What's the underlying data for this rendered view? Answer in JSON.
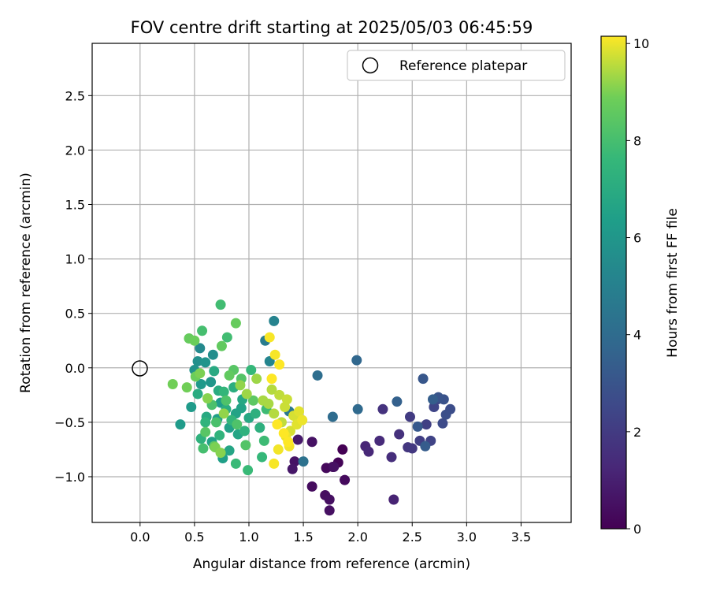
{
  "chart_data": {
    "type": "scatter",
    "title": "FOV centre drift starting at 2025/05/03 06:45:59",
    "xlabel": "Angular distance from reference (arcmin)",
    "ylabel": "Rotation from reference (arcmin)",
    "xlim": [
      -0.44,
      3.96
    ],
    "ylim": [
      -1.42,
      2.98
    ],
    "xticks": [
      0.0,
      0.5,
      1.0,
      1.5,
      2.0,
      2.5,
      3.0,
      3.5
    ],
    "yticks": [
      -1.0,
      -0.5,
      0.0,
      0.5,
      1.0,
      1.5,
      2.0,
      2.5
    ],
    "grid": true,
    "legend": {
      "position": "top-right",
      "entries": [
        "Reference platepar"
      ]
    },
    "reference_point": {
      "x": 0.0,
      "y": 0.0,
      "label": "Reference platepar"
    },
    "colorbar": {
      "label": "Hours from first FF file",
      "colormap": "viridis",
      "range": [
        0,
        10.15
      ],
      "ticks": [
        0,
        2,
        4,
        6,
        8,
        10
      ]
    },
    "points": [
      {
        "x": 1.86,
        "y": -0.75,
        "h": 0.0
      },
      {
        "x": 1.82,
        "y": -0.87,
        "h": 0.1
      },
      {
        "x": 1.77,
        "y": -0.91,
        "h": 0.2
      },
      {
        "x": 1.71,
        "y": -0.92,
        "h": 0.25
      },
      {
        "x": 1.88,
        "y": -1.03,
        "h": 0.3
      },
      {
        "x": 1.58,
        "y": -1.09,
        "h": 0.35
      },
      {
        "x": 1.7,
        "y": -1.17,
        "h": 0.4
      },
      {
        "x": 1.74,
        "y": -1.21,
        "h": 0.45
      },
      {
        "x": 1.74,
        "y": -1.31,
        "h": 0.5
      },
      {
        "x": 1.58,
        "y": -0.68,
        "h": 0.55
      },
      {
        "x": 1.42,
        "y": -0.86,
        "h": 0.6
      },
      {
        "x": 1.4,
        "y": -0.93,
        "h": 0.7
      },
      {
        "x": 1.78,
        "y": -0.91,
        "h": 0.5
      },
      {
        "x": 1.45,
        "y": -0.66,
        "h": 0.8
      },
      {
        "x": 2.33,
        "y": -1.21,
        "h": 1.1
      },
      {
        "x": 2.07,
        "y": -0.72,
        "h": 1.2
      },
      {
        "x": 2.1,
        "y": -0.77,
        "h": 1.3
      },
      {
        "x": 2.2,
        "y": -0.67,
        "h": 1.4
      },
      {
        "x": 2.31,
        "y": -0.82,
        "h": 1.5
      },
      {
        "x": 2.38,
        "y": -0.61,
        "h": 1.6
      },
      {
        "x": 2.23,
        "y": -0.38,
        "h": 1.7
      },
      {
        "x": 2.46,
        "y": -0.73,
        "h": 1.8
      },
      {
        "x": 2.5,
        "y": -0.74,
        "h": 1.9
      },
      {
        "x": 2.48,
        "y": -0.45,
        "h": 2.0
      },
      {
        "x": 2.57,
        "y": -0.67,
        "h": 2.1
      },
      {
        "x": 2.63,
        "y": -0.52,
        "h": 2.2
      },
      {
        "x": 2.67,
        "y": -0.67,
        "h": 2.3
      },
      {
        "x": 2.7,
        "y": -0.36,
        "h": 2.4
      },
      {
        "x": 2.73,
        "y": -0.29,
        "h": 2.5
      },
      {
        "x": 2.78,
        "y": -0.51,
        "h": 2.6
      },
      {
        "x": 2.85,
        "y": -0.38,
        "h": 2.7
      },
      {
        "x": 2.81,
        "y": -0.43,
        "h": 2.8
      },
      {
        "x": 2.79,
        "y": -0.29,
        "h": 2.9
      },
      {
        "x": 2.74,
        "y": -0.27,
        "h": 3.0
      },
      {
        "x": 2.6,
        "y": -0.1,
        "h": 3.1
      },
      {
        "x": 2.55,
        "y": -0.54,
        "h": 3.2
      },
      {
        "x": 2.62,
        "y": -0.72,
        "h": 3.3
      },
      {
        "x": 2.69,
        "y": -0.29,
        "h": 3.4
      },
      {
        "x": 2.36,
        "y": -0.31,
        "h": 3.5
      },
      {
        "x": 1.99,
        "y": 0.07,
        "h": 3.8
      },
      {
        "x": 2.0,
        "y": -0.38,
        "h": 3.9
      },
      {
        "x": 1.77,
        "y": -0.45,
        "h": 4.0
      },
      {
        "x": 1.63,
        "y": -0.07,
        "h": 4.1
      },
      {
        "x": 1.5,
        "y": -0.86,
        "h": 4.3
      },
      {
        "x": 1.37,
        "y": -0.4,
        "h": 4.6
      },
      {
        "x": 1.15,
        "y": 0.25,
        "h": 4.8
      },
      {
        "x": 1.23,
        "y": 0.43,
        "h": 5.1
      },
      {
        "x": 1.19,
        "y": 0.06,
        "h": 5.2
      },
      {
        "x": 0.55,
        "y": 0.18,
        "h": 5.4
      },
      {
        "x": 0.67,
        "y": 0.12,
        "h": 5.6
      },
      {
        "x": 0.53,
        "y": 0.06,
        "h": 5.7
      },
      {
        "x": 0.5,
        "y": -0.02,
        "h": 5.8
      },
      {
        "x": 0.6,
        "y": 0.05,
        "h": 5.9
      },
      {
        "x": 0.65,
        "y": -0.13,
        "h": 6.0
      },
      {
        "x": 0.56,
        "y": -0.15,
        "h": 6.1
      },
      {
        "x": 0.47,
        "y": -0.36,
        "h": 6.2
      },
      {
        "x": 0.37,
        "y": -0.52,
        "h": 6.2
      },
      {
        "x": 0.74,
        "y": -0.32,
        "h": 6.3
      },
      {
        "x": 0.71,
        "y": -0.47,
        "h": 6.4
      },
      {
        "x": 0.76,
        "y": -0.83,
        "h": 6.4
      },
      {
        "x": 0.66,
        "y": -0.68,
        "h": 6.5
      },
      {
        "x": 0.82,
        "y": -0.55,
        "h": 6.5
      },
      {
        "x": 0.88,
        "y": -0.42,
        "h": 6.6
      },
      {
        "x": 0.93,
        "y": -0.37,
        "h": 6.6
      },
      {
        "x": 0.82,
        "y": -0.76,
        "h": 6.7
      },
      {
        "x": 0.9,
        "y": -0.61,
        "h": 6.7
      },
      {
        "x": 0.94,
        "y": -0.29,
        "h": 6.8
      },
      {
        "x": 1.0,
        "y": -0.46,
        "h": 6.8
      },
      {
        "x": 0.68,
        "y": -0.03,
        "h": 6.9
      },
      {
        "x": 0.61,
        "y": -0.45,
        "h": 6.9
      },
      {
        "x": 0.53,
        "y": -0.24,
        "h": 7.0
      },
      {
        "x": 0.72,
        "y": -0.21,
        "h": 7.0
      },
      {
        "x": 0.79,
        "y": -0.38,
        "h": 7.1
      },
      {
        "x": 0.86,
        "y": -0.18,
        "h": 7.1
      },
      {
        "x": 1.06,
        "y": -0.42,
        "h": 7.2
      },
      {
        "x": 1.1,
        "y": -0.55,
        "h": 7.2
      },
      {
        "x": 0.96,
        "y": -0.58,
        "h": 7.3
      },
      {
        "x": 0.56,
        "y": -0.65,
        "h": 7.3
      },
      {
        "x": 0.6,
        "y": -0.5,
        "h": 7.4
      },
      {
        "x": 0.73,
        "y": -0.62,
        "h": 7.4
      },
      {
        "x": 0.84,
        "y": -0.48,
        "h": 7.5
      },
      {
        "x": 0.77,
        "y": -0.22,
        "h": 7.5
      },
      {
        "x": 1.02,
        "y": -0.02,
        "h": 7.6
      },
      {
        "x": 1.12,
        "y": -0.82,
        "h": 7.6
      },
      {
        "x": 0.88,
        "y": -0.88,
        "h": 7.7
      },
      {
        "x": 0.99,
        "y": -0.94,
        "h": 7.7
      },
      {
        "x": 1.16,
        "y": -0.38,
        "h": 7.8
      },
      {
        "x": 1.14,
        "y": -0.67,
        "h": 7.8
      },
      {
        "x": 0.8,
        "y": 0.28,
        "h": 7.9
      },
      {
        "x": 0.74,
        "y": 0.58,
        "h": 7.9
      },
      {
        "x": 0.57,
        "y": 0.34,
        "h": 8.0
      },
      {
        "x": 0.58,
        "y": -0.74,
        "h": 8.0
      },
      {
        "x": 0.66,
        "y": -0.34,
        "h": 8.1
      },
      {
        "x": 0.7,
        "y": -0.5,
        "h": 8.1
      },
      {
        "x": 0.79,
        "y": -0.3,
        "h": 8.2
      },
      {
        "x": 0.89,
        "y": -0.52,
        "h": 8.2
      },
      {
        "x": 0.97,
        "y": -0.71,
        "h": 8.3
      },
      {
        "x": 0.93,
        "y": -0.1,
        "h": 8.3
      },
      {
        "x": 0.6,
        "y": -0.59,
        "h": 8.4
      },
      {
        "x": 0.86,
        "y": -0.02,
        "h": 8.4
      },
      {
        "x": 1.04,
        "y": -0.3,
        "h": 8.5
      },
      {
        "x": 0.68,
        "y": -0.72,
        "h": 8.5
      },
      {
        "x": 0.75,
        "y": 0.2,
        "h": 8.6
      },
      {
        "x": 0.82,
        "y": -0.07,
        "h": 8.6
      },
      {
        "x": 0.88,
        "y": 0.41,
        "h": 8.7
      },
      {
        "x": 0.45,
        "y": 0.27,
        "h": 8.7
      },
      {
        "x": 0.5,
        "y": 0.25,
        "h": 8.8
      },
      {
        "x": 0.51,
        "y": -0.08,
        "h": 8.8
      },
      {
        "x": 0.43,
        "y": -0.18,
        "h": 8.9
      },
      {
        "x": 0.3,
        "y": -0.15,
        "h": 8.9
      },
      {
        "x": 0.55,
        "y": -0.05,
        "h": 9.0
      },
      {
        "x": 0.69,
        "y": -0.73,
        "h": 9.0
      },
      {
        "x": 0.74,
        "y": -0.78,
        "h": 9.1
      },
      {
        "x": 0.62,
        "y": -0.28,
        "h": 9.1
      },
      {
        "x": 0.77,
        "y": -0.42,
        "h": 9.2
      },
      {
        "x": 0.92,
        "y": -0.16,
        "h": 9.2
      },
      {
        "x": 0.98,
        "y": -0.24,
        "h": 9.3
      },
      {
        "x": 1.07,
        "y": -0.1,
        "h": 9.3
      },
      {
        "x": 1.13,
        "y": -0.3,
        "h": 9.4
      },
      {
        "x": 1.18,
        "y": -0.33,
        "h": 9.4
      },
      {
        "x": 1.21,
        "y": -0.2,
        "h": 9.5
      },
      {
        "x": 1.23,
        "y": -0.42,
        "h": 9.5
      },
      {
        "x": 1.28,
        "y": -0.25,
        "h": 9.6
      },
      {
        "x": 1.3,
        "y": -0.5,
        "h": 9.6
      },
      {
        "x": 1.33,
        "y": -0.36,
        "h": 9.7
      },
      {
        "x": 1.35,
        "y": -0.29,
        "h": 9.7
      },
      {
        "x": 1.38,
        "y": -0.58,
        "h": 9.8
      },
      {
        "x": 1.41,
        "y": -0.44,
        "h": 9.8
      },
      {
        "x": 1.44,
        "y": -0.52,
        "h": 9.9
      },
      {
        "x": 1.46,
        "y": -0.4,
        "h": 9.9
      },
      {
        "x": 1.49,
        "y": -0.48,
        "h": 10.0
      },
      {
        "x": 1.34,
        "y": -0.63,
        "h": 10.0
      },
      {
        "x": 1.37,
        "y": -0.72,
        "h": 10.05
      },
      {
        "x": 1.27,
        "y": -0.75,
        "h": 10.05
      },
      {
        "x": 1.23,
        "y": -0.88,
        "h": 10.1
      },
      {
        "x": 1.19,
        "y": 0.28,
        "h": 10.1
      },
      {
        "x": 1.24,
        "y": 0.12,
        "h": 10.1
      },
      {
        "x": 1.28,
        "y": 0.03,
        "h": 10.15
      },
      {
        "x": 1.21,
        "y": -0.1,
        "h": 10.15
      },
      {
        "x": 1.32,
        "y": -0.6,
        "h": 10.15
      },
      {
        "x": 1.36,
        "y": -0.68,
        "h": 10.15
      },
      {
        "x": 1.26,
        "y": -0.52,
        "h": 10.15
      }
    ]
  }
}
